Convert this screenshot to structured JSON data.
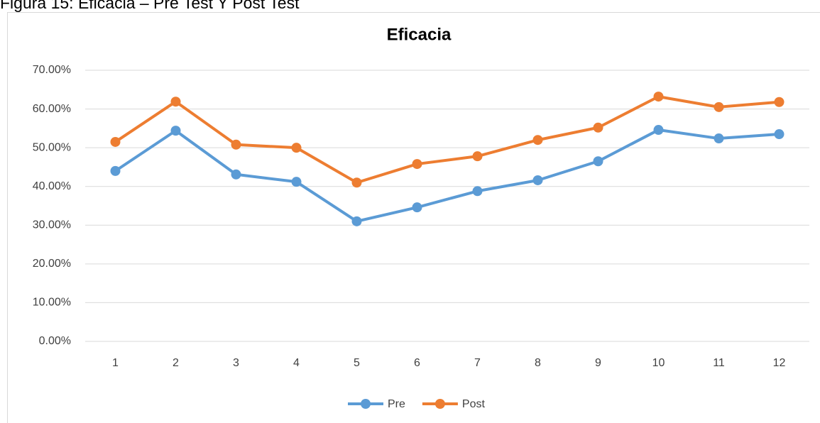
{
  "caption": "Figura 15: Eficacia – Pre Test Y Post Test",
  "chart_data": {
    "type": "line",
    "title": "Eficacia",
    "categories": [
      "1",
      "2",
      "3",
      "4",
      "5",
      "6",
      "7",
      "8",
      "9",
      "10",
      "11",
      "12"
    ],
    "series": [
      {
        "name": "Pre",
        "color": "#5b9bd5",
        "values": [
          44.0,
          54.4,
          43.1,
          41.2,
          31.0,
          34.6,
          38.8,
          41.6,
          46.5,
          54.6,
          52.4,
          53.5
        ]
      },
      {
        "name": "Post",
        "color": "#ed7d31",
        "values": [
          51.5,
          61.9,
          50.8,
          50.0,
          41.0,
          45.8,
          47.8,
          52.0,
          55.2,
          63.2,
          60.5,
          61.8
        ]
      }
    ],
    "ylim": [
      0,
      70
    ],
    "yticks": [
      {
        "value": 0,
        "label": "0.00%"
      },
      {
        "value": 10,
        "label": "10.00%"
      },
      {
        "value": 20,
        "label": "20.00%"
      },
      {
        "value": 30,
        "label": "30.00%"
      },
      {
        "value": 40,
        "label": "40.00%"
      },
      {
        "value": 50,
        "label": "50.00%"
      },
      {
        "value": 60,
        "label": "60.00%"
      },
      {
        "value": 70,
        "label": "70.00%"
      }
    ],
    "grid": true,
    "legend": "bottom"
  }
}
